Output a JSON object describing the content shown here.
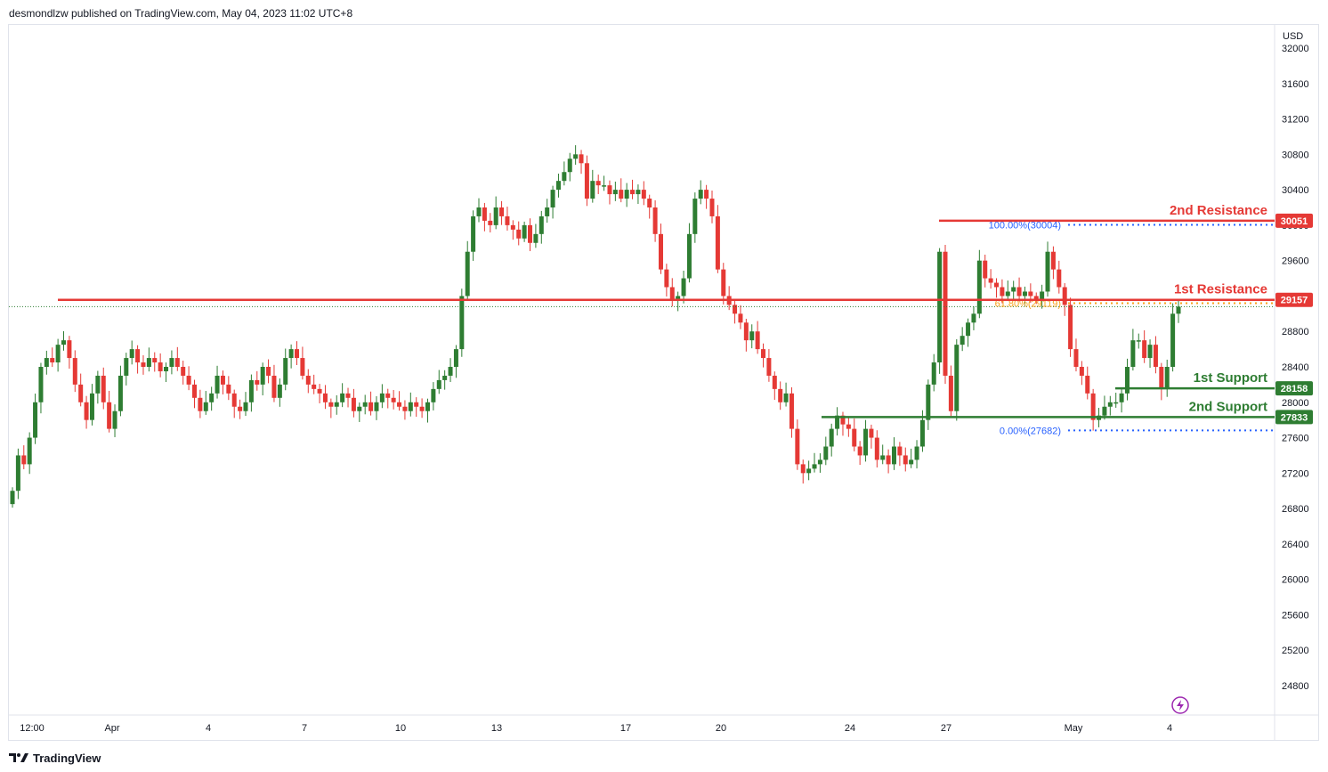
{
  "header": {
    "text": "desmondlzw published on TradingView.com, May 04, 2023 11:02 UTC+8"
  },
  "footer": {
    "brand": "TradingView"
  },
  "colors": {
    "up": "#2e7d32",
    "down": "#e53935",
    "resistance": "#e53935",
    "support": "#2e7d32",
    "fib_line": "#2962ff",
    "fib_618": "#f7a21b",
    "lightning": "#9c27b0"
  },
  "chart_data": {
    "type": "candlestick",
    "y_axis": {
      "currency": "USD",
      "ylim": [
        24500,
        32100
      ],
      "ticks": [
        32000,
        31600,
        31200,
        30800,
        30400,
        30000,
        29600,
        29200,
        28800,
        28400,
        28000,
        27600,
        27200,
        26800,
        26400,
        26000,
        25600,
        25200,
        24800
      ]
    },
    "x_axis": {
      "ticks": [
        "12:00",
        "Apr",
        "4",
        "7",
        "10",
        "13",
        "17",
        "20",
        "24",
        "27",
        "May",
        "4"
      ]
    },
    "levels": [
      {
        "label": "2nd Resistance",
        "value": 30051,
        "price_label": "30051",
        "kind": "resistance"
      },
      {
        "label": "1st Resistance",
        "value": 29157,
        "price_label": "29157",
        "kind": "resistance"
      },
      {
        "label": "1st Support",
        "value": 28158,
        "price_label": "28158",
        "kind": "support"
      },
      {
        "label": "2nd Support",
        "value": 27833,
        "price_label": "27833",
        "kind": "support"
      }
    ],
    "fib": [
      {
        "label": "100.00%(30004)",
        "value": 30004
      },
      {
        "label": "61.80%(29119)",
        "value": 29119
      },
      {
        "label": "0.00%(27682)",
        "value": 27682
      }
    ],
    "current_price": 29080,
    "closes": [
      27000,
      27400,
      27300,
      27600,
      28000,
      28400,
      28500,
      28450,
      28650,
      28700,
      28500,
      28200,
      28000,
      27800,
      28100,
      28300,
      28000,
      27700,
      27900,
      28300,
      28500,
      28600,
      28450,
      28400,
      28500,
      28450,
      28350,
      28400,
      28500,
      28400,
      28300,
      28200,
      28050,
      27900,
      28000,
      28100,
      28300,
      28200,
      28100,
      27950,
      27900,
      28000,
      28250,
      28200,
      28400,
      28300,
      28050,
      28200,
      28500,
      28600,
      28500,
      28300,
      28200,
      28150,
      28100,
      28000,
      27950,
      28000,
      28100,
      28050,
      27900,
      27950,
      28000,
      27900,
      28000,
      28100,
      28050,
      28000,
      27950,
      27900,
      28000,
      27950,
      27900,
      28000,
      28150,
      28250,
      28300,
      28400,
      28600,
      29200,
      29700,
      30100,
      30200,
      30050,
      30000,
      30200,
      30100,
      30000,
      29950,
      29850,
      30000,
      29800,
      29900,
      30100,
      30200,
      30400,
      30500,
      30600,
      30750,
      30800,
      30700,
      30300,
      30500,
      30450,
      30450,
      30350,
      30400,
      30300,
      30400,
      30350,
      30400,
      30300,
      30200,
      29900,
      29500,
      29300,
      29150,
      29200,
      29400,
      29900,
      30300,
      30400,
      30300,
      30100,
      29500,
      29200,
      29100,
      29000,
      28900,
      28700,
      28800,
      28600,
      28500,
      28300,
      28150,
      28000,
      28100,
      27700,
      27300,
      27200,
      27250,
      27300,
      27350,
      27500,
      27700,
      27850,
      27750,
      27700,
      27500,
      27400,
      27700,
      27600,
      27350,
      27400,
      27300,
      27500,
      27400,
      27300,
      27350,
      27500,
      27800,
      28200,
      28450,
      29700,
      28300,
      27900,
      28650,
      28750,
      28900,
      29000,
      29600,
      29400,
      29350,
      29300,
      29200,
      29250,
      29300,
      29200,
      29250,
      29200,
      29150,
      29250,
      29700,
      29500,
      29300,
      29100,
      28600,
      28400,
      28300,
      28100,
      27800,
      27850,
      27950,
      28000,
      28000,
      28100,
      28400,
      28700,
      28700,
      28500,
      28650,
      28400,
      28150,
      28400,
      29000,
      29080
    ],
    "candles_note": "approximate daily/4h price path"
  }
}
